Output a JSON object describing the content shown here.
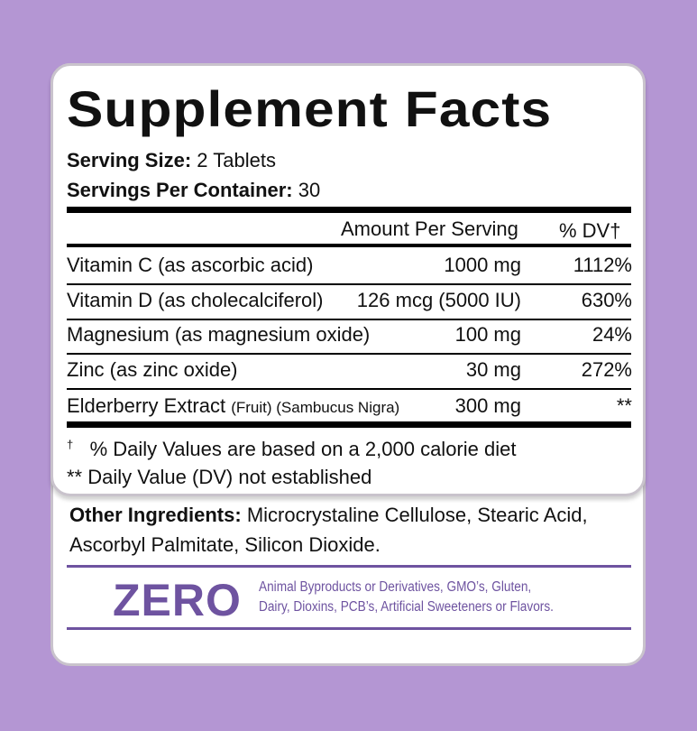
{
  "title": "Supplement Facts",
  "serving_size": {
    "label": "Serving Size:",
    "value": "2 Tablets"
  },
  "servings_per_container": {
    "label": "Servings Per Container:",
    "value": "30"
  },
  "headers": {
    "amount": "Amount Per Serving",
    "dv": "% DV†"
  },
  "rows": [
    {
      "name": "Vitamin C (as ascorbic acid)",
      "sub": "",
      "amount": "1000 mg",
      "dv": "1112%"
    },
    {
      "name": "Vitamin D (as cholecalciferol)",
      "sub": "",
      "amount": "126 mcg (5000 IU)",
      "dv": "630%"
    },
    {
      "name": "Magnesium (as magnesium oxide)",
      "sub": "",
      "amount": "100 mg",
      "dv": "24%"
    },
    {
      "name": "Zinc (as zinc oxide)",
      "sub": "",
      "amount": "30 mg",
      "dv": "272%"
    },
    {
      "name": "Elderberry Extract",
      "sub": "(Fruit) (Sambucus Nigra)",
      "amount": "300 mg",
      "dv": "**"
    }
  ],
  "footnotes": [
    {
      "mark": "†",
      "text": "% Daily Values are based on a 2,000 calorie diet"
    },
    {
      "mark": "**",
      "text": "Daily Value (DV) not established"
    }
  ],
  "other_ingredients": {
    "label": "Other Ingredients:",
    "line1": "Microcrystaline Cellulose, Stearic Acid,",
    "line2": "Ascorbyl Palmitate, Silicon Dioxide."
  },
  "zero": {
    "label": "ZERO",
    "line1": "Animal Byproducts or Derivatives, GMO’s, Gluten,",
    "line2": "Dairy, Dioxins, PCB’s, Artificial Sweeteners or Flavors."
  },
  "colors": {
    "background": "#b496d3",
    "accent": "#6e53a0"
  }
}
